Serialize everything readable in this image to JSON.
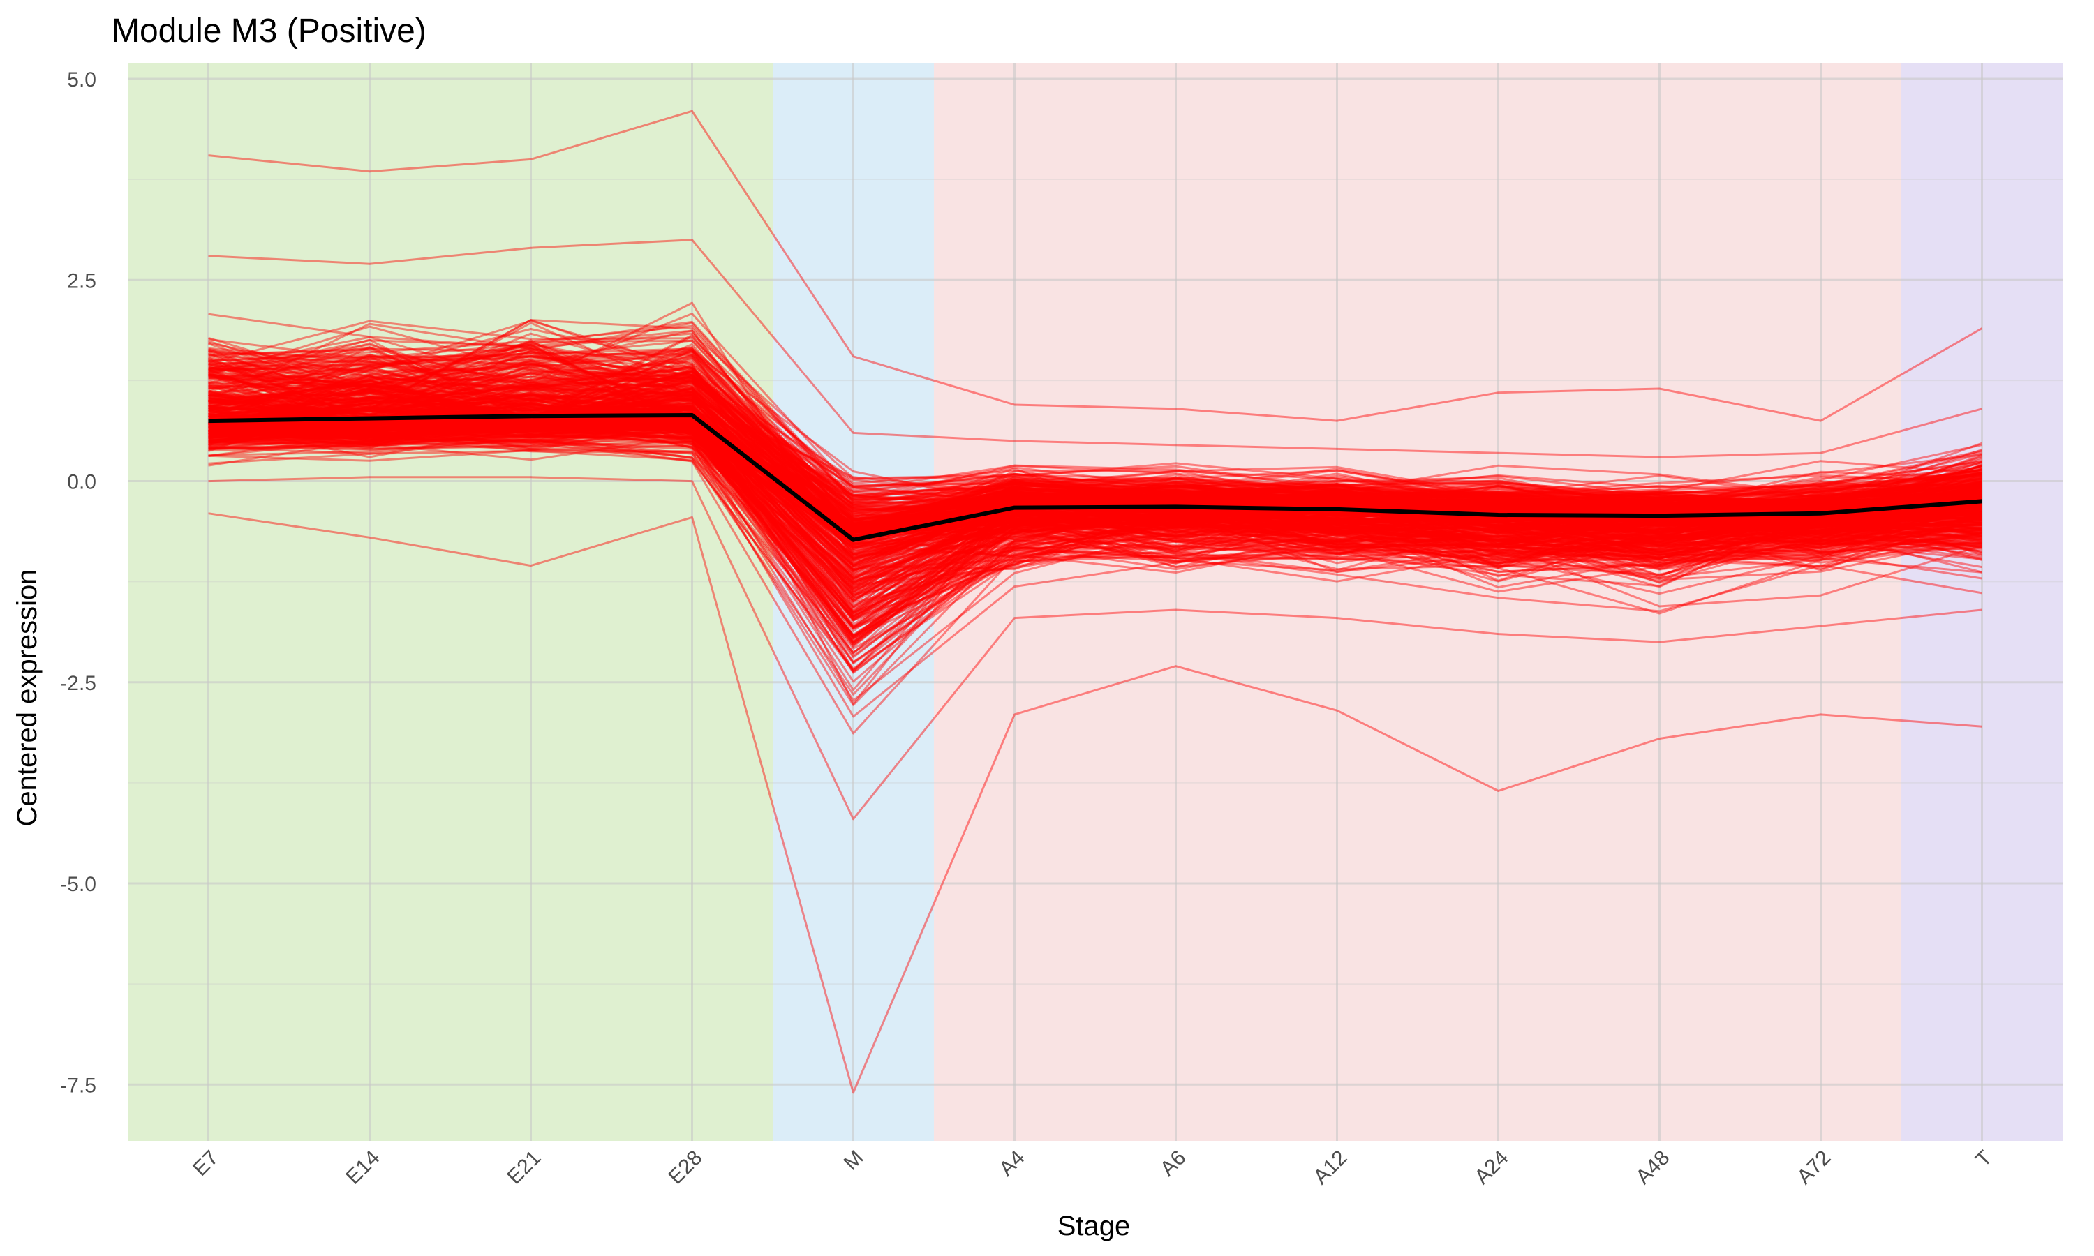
{
  "chart_data": {
    "type": "line",
    "title": "Module M3 (Positive)",
    "xlabel": "Stage",
    "ylabel": "Centered expression",
    "categories": [
      "E7",
      "E14",
      "E21",
      "E28",
      "M",
      "A4",
      "A6",
      "A12",
      "A24",
      "A48",
      "A72",
      "T"
    ],
    "ylim": [
      -8.2,
      5.2
    ],
    "yticks": [
      -7.5,
      -5.0,
      -2.5,
      0.0,
      2.5,
      5.0
    ],
    "ytick_labels": [
      "-7.5",
      "-5.0",
      "-2.5",
      "0.0",
      "2.5",
      "5.0"
    ],
    "grid": true,
    "legend": "none",
    "background_bands": [
      {
        "from": "E7",
        "to": "E28",
        "color": "#dff0d0"
      },
      {
        "from": "M",
        "to": "M",
        "color": "#dbedf8"
      },
      {
        "from": "A4",
        "to": "A72",
        "color": "#f9e3e3"
      },
      {
        "from": "T",
        "to": "T",
        "color": "#e5dff5"
      }
    ],
    "series": [
      {
        "role": "mean",
        "color": "#000000",
        "values": [
          0.75,
          0.78,
          0.81,
          0.82,
          -0.73,
          -0.33,
          -0.32,
          -0.35,
          -0.42,
          -0.43,
          -0.4,
          -0.25
        ]
      },
      {
        "role": "gene-high",
        "color": "#ff0000",
        "values": [
          4.05,
          3.85,
          4.0,
          4.6,
          1.55,
          0.95,
          0.9,
          0.75,
          1.1,
          1.15,
          0.75,
          1.9
        ]
      },
      {
        "role": "gene-low",
        "color": "#ff0000",
        "values": [
          -0.4,
          -0.7,
          -1.05,
          -0.45,
          -7.6,
          -2.9,
          -2.3,
          -2.85,
          -3.85,
          -3.2,
          -2.9,
          -3.05
        ]
      },
      {
        "role": "gene-typical-upper",
        "color": "#ff0000",
        "values": [
          2.8,
          2.7,
          2.9,
          3.0,
          0.6,
          0.5,
          0.45,
          0.4,
          0.35,
          0.3,
          0.35,
          0.9
        ]
      },
      {
        "role": "gene-typical-lower",
        "color": "#ff0000",
        "values": [
          0.0,
          0.05,
          0.05,
          0.0,
          -4.2,
          -1.7,
          -1.6,
          -1.7,
          -1.9,
          -2.0,
          -1.8,
          -1.6
        ]
      }
    ],
    "gene_profile_count_estimate": 400,
    "gene_line_opacity": 0.45
  }
}
